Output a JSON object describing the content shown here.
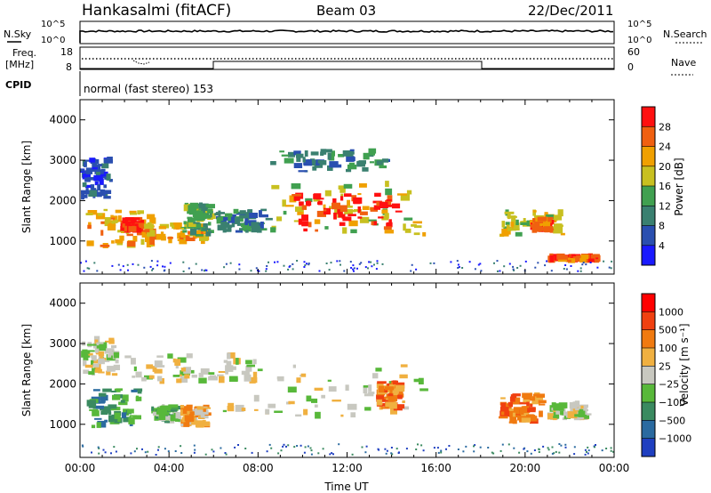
{
  "header": {
    "station": "Hankasalmi (fitACF)",
    "beam": "Beam 03",
    "date": "22/Dec/2011"
  },
  "status_panels": {
    "nsky_label": "N.Sky",
    "nsky_ticks": [
      "10^5",
      "10^0"
    ],
    "nsearch_label": "N.Search",
    "nsearch_ticks": [
      "10^5",
      "10^0"
    ],
    "freq_label_1": "Freq.",
    "freq_label_2": "[MHz]",
    "freq_ticks": [
      "18",
      "8"
    ],
    "nave_label": "Nave",
    "nave_ticks": [
      "60",
      "0"
    ],
    "cpid_label": "CPID",
    "cpid_text": "normal (fast stereo) 153"
  },
  "chart_data": [
    {
      "type": "heatmap",
      "name": "power",
      "ylabel": "Slant Range [km]",
      "ylim": [
        180,
        4500
      ],
      "yticks": [
        "1000",
        "2000",
        "3000",
        "4000"
      ],
      "xlim": [
        0,
        24
      ],
      "colorbar_label": "Power [dB]",
      "colorbar_ticks": [
        "4",
        "8",
        "12",
        "16",
        "20",
        "24",
        "28"
      ],
      "colorbar_colors": [
        "#1a1aff",
        "#2a4fb0",
        "#3a8070",
        "#40a050",
        "#c8c020",
        "#f0a000",
        "#f06010",
        "#ff1010"
      ],
      "regions": [
        {
          "x": [
            0.0,
            1.5
          ],
          "y": [
            2000,
            3100
          ],
          "level": 1
        },
        {
          "x": [
            0.2,
            3.5
          ],
          "y": [
            800,
            1800
          ],
          "level": 5
        },
        {
          "x": [
            1.8,
            2.9
          ],
          "y": [
            1200,
            1600
          ],
          "level": 7
        },
        {
          "x": [
            2.7,
            5.9
          ],
          "y": [
            900,
            1500
          ],
          "level": 5
        },
        {
          "x": [
            4.5,
            6.1
          ],
          "y": [
            1100,
            2000
          ],
          "level": 3
        },
        {
          "x": [
            6.0,
            8.7
          ],
          "y": [
            1200,
            1800
          ],
          "level": 2
        },
        {
          "x": [
            8.5,
            15.6
          ],
          "y": [
            1100,
            2500
          ],
          "level": 4
        },
        {
          "x": [
            9.5,
            14.5
          ],
          "y": [
            1200,
            2200
          ],
          "level": 7
        },
        {
          "x": [
            8.5,
            14.0
          ],
          "y": [
            2700,
            3300
          ],
          "level": 2
        },
        {
          "x": [
            18.8,
            21.8
          ],
          "y": [
            1100,
            1800
          ],
          "level": 4
        },
        {
          "x": [
            20.2,
            21.3
          ],
          "y": [
            1200,
            1600
          ],
          "level": 6
        },
        {
          "x": [
            21.0,
            23.4
          ],
          "y": [
            450,
            700
          ],
          "level": 6
        }
      ]
    },
    {
      "type": "heatmap",
      "name": "velocity",
      "ylabel": "Slant Range [km]",
      "ylim": [
        180,
        4500
      ],
      "yticks": [
        "1000",
        "2000",
        "3000",
        "4000"
      ],
      "xlim": [
        0,
        24
      ],
      "xticks": [
        "00:00",
        "04:00",
        "08:00",
        "12:00",
        "16:00",
        "20:00",
        "00:00"
      ],
      "xlabel": "Time UT",
      "colorbar_label": "Velocity [m s⁻¹]",
      "colorbar_ticks": [
        "1000",
        "500",
        "100",
        "25",
        "−25",
        "−100",
        "−500",
        "−1000"
      ],
      "colorbar_colors": [
        "#1f3fc0",
        "#2a6aa0",
        "#3a8a60",
        "#58b83a",
        "#c8c8c0",
        "#f0b040",
        "#f07a10",
        "#f04010",
        "#ff0000"
      ],
      "regions": [
        {
          "x": [
            0.0,
            1.8
          ],
          "y": [
            2200,
            3200
          ],
          "level": 4
        },
        {
          "x": [
            0.3,
            3.0
          ],
          "y": [
            900,
            1900
          ],
          "level": 2
        },
        {
          "x": [
            3.2,
            4.6
          ],
          "y": [
            1000,
            1500
          ],
          "level": 3
        },
        {
          "x": [
            4.5,
            5.9
          ],
          "y": [
            900,
            1500
          ],
          "level": 5
        },
        {
          "x": [
            2.0,
            8.5
          ],
          "y": [
            2000,
            2800
          ],
          "level": 4
        },
        {
          "x": [
            6.0,
            15.8
          ],
          "y": [
            1100,
            2500
          ],
          "level": 4
        },
        {
          "x": [
            13.3,
            14.6
          ],
          "y": [
            1300,
            2100
          ],
          "level": 6
        },
        {
          "x": [
            18.8,
            21.0
          ],
          "y": [
            1000,
            1800
          ],
          "level": 6
        },
        {
          "x": [
            21.0,
            23.0
          ],
          "y": [
            1100,
            1600
          ],
          "level": 4
        }
      ]
    }
  ]
}
